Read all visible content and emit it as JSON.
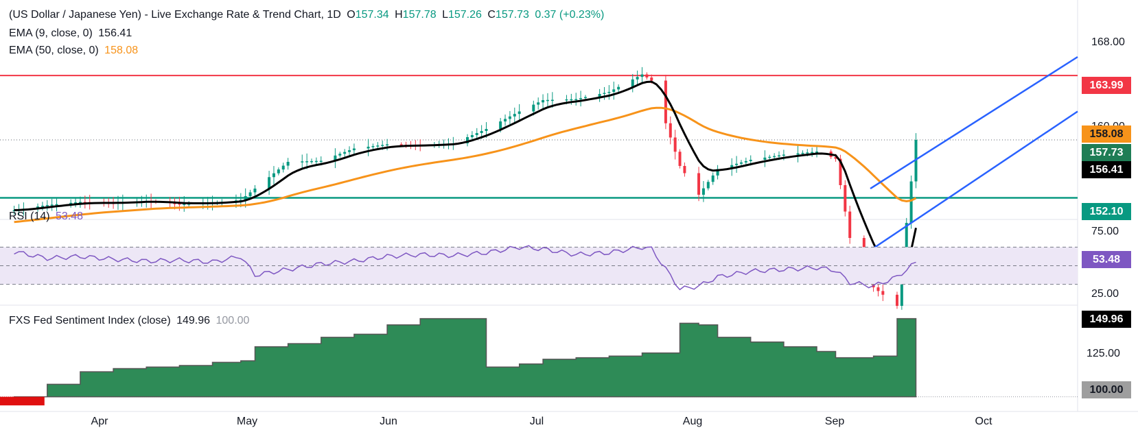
{
  "legend": {
    "title": "(US Dollar / Japanese Yen) - Live Exchange Rate & Trend Chart, 1D",
    "o_label": "O",
    "o_value": "157.34",
    "h_label": "H",
    "h_value": "157.78",
    "l_label": "L",
    "l_value": "157.26",
    "c_label": "C",
    "c_value": "157.73",
    "change": "0.37 (+0.23%)",
    "ema9_label": "EMA (9, close, 0)",
    "ema9_value": "156.41",
    "ema50_label": "EMA (50, close, 0)",
    "ema50_value": "158.08",
    "rsi_label": "RSI (14)",
    "rsi_value": "53.48",
    "fxs_label": "FXS Fed Sentiment Index (close)",
    "fxs_value": "149.96",
    "fxs_value2": "100.00"
  },
  "price_axis": {
    "labels": [
      "168.00",
      "160.00"
    ]
  },
  "rsi_axis": {
    "labels": [
      "75.00",
      "25.00"
    ]
  },
  "fxs_axis": {
    "labels": [
      "125.00"
    ]
  },
  "price_tags": {
    "resistance": "163.99",
    "ema50": "158.08",
    "close": "157.73",
    "ema9": "156.41",
    "support": "152.10",
    "rsi": "53.48",
    "fxs": "149.96",
    "fxs_base": "100.00"
  },
  "months": [
    "Apr",
    "May",
    "Jun",
    "Jul",
    "Aug",
    "Sep",
    "Oct"
  ],
  "colors": {
    "up": "#089981",
    "down": "#f23645",
    "ema9": "#000000",
    "ema50": "#f7931a",
    "resistance": "#f23645",
    "support": "#089981",
    "channel": "#2962ff",
    "rsi": "#7e57c2",
    "rsi_band": "#ede7f6",
    "fxs_fill": "#2e8b57",
    "fxs_neg": "#e01010"
  },
  "chart_data": [
    {
      "type": "line",
      "title": "(US Dollar / Japanese Yen) - Live Exchange Rate & Trend Chart, 1D",
      "x": [
        "2024-03-13",
        "2024-03-20",
        "2024-03-27",
        "2024-04-03",
        "2024-04-10",
        "2024-04-17",
        "2024-04-24",
        "2024-04-30",
        "2024-05-03",
        "2024-05-10",
        "2024-05-17",
        "2024-05-24",
        "2024-05-31",
        "2024-06-07",
        "2024-06-14",
        "2024-06-21",
        "2024-06-28",
        "2024-07-03",
        "2024-07-10",
        "2024-07-17",
        "2024-07-24",
        "2024-07-26",
        "2024-08-01",
        "2024-08-05",
        "2024-08-09",
        "2024-08-16",
        "2024-08-23",
        "2024-08-30",
        "2024-09-03",
        "2024-09-06",
        "2024-09-11",
        "2024-09-16",
        "2024-09-20"
      ],
      "close": [
        150.9,
        151.4,
        151.7,
        151.6,
        151.8,
        151.5,
        151.6,
        151.9,
        153.0,
        155.6,
        155.7,
        156.9,
        157.3,
        157.2,
        157.4,
        158.8,
        160.5,
        161.6,
        161.7,
        162.4,
        164.1,
        163.5,
        155.2,
        152.4,
        154.9,
        155.8,
        156.3,
        156.6,
        155.9,
        148.2,
        143.4,
        141.6,
        157.73
      ],
      "series": [
        {
          "name": "EMA (9, close, 0)",
          "last": 156.41
        },
        {
          "name": "EMA (50, close, 0)",
          "last": 158.08
        }
      ],
      "horizontal_levels": [
        163.99,
        152.1
      ],
      "ohlc_last": {
        "open": 157.34,
        "high": 157.78,
        "low": 157.26,
        "close": 157.73,
        "change": 0.37,
        "change_pct": 0.23
      },
      "ylim": [
        150,
        170
      ],
      "x_tick_labels": [
        "Apr",
        "May",
        "Jun",
        "Jul",
        "Aug",
        "Sep",
        "Oct"
      ],
      "grid": false
    },
    {
      "type": "line",
      "series": [
        {
          "name": "RSI (14)",
          "last": 53.48
        }
      ],
      "x": [
        "2024-03-13",
        "2024-03-20",
        "2024-03-27",
        "2024-04-03",
        "2024-04-10",
        "2024-04-17",
        "2024-04-24",
        "2024-04-30",
        "2024-05-03",
        "2024-05-10",
        "2024-05-17",
        "2024-05-24",
        "2024-05-31",
        "2024-06-07",
        "2024-06-14",
        "2024-06-21",
        "2024-06-28",
        "2024-07-03",
        "2024-07-10",
        "2024-07-17",
        "2024-07-24",
        "2024-07-26",
        "2024-08-01",
        "2024-08-05",
        "2024-08-09",
        "2024-08-16",
        "2024-08-23",
        "2024-08-30",
        "2024-09-03",
        "2024-09-06",
        "2024-09-11",
        "2024-09-16",
        "2024-09-20"
      ],
      "values": [
        65,
        58,
        60,
        57,
        55,
        56,
        54,
        60,
        40,
        46,
        52,
        55,
        60,
        62,
        61,
        64,
        70,
        68,
        62,
        64,
        70,
        68,
        25,
        28,
        38,
        44,
        46,
        48,
        45,
        32,
        28,
        38,
        53.48
      ],
      "levels": [
        75,
        50,
        25
      ],
      "ylim": [
        25,
        75
      ]
    },
    {
      "type": "area",
      "series": [
        {
          "name": "FXS Fed Sentiment Index (close)",
          "last": 149.96
        }
      ],
      "x": [
        "2024-03-13",
        "2024-03-20",
        "2024-03-27",
        "2024-04-03",
        "2024-04-10",
        "2024-04-17",
        "2024-04-24",
        "2024-04-30",
        "2024-05-03",
        "2024-05-10",
        "2024-05-17",
        "2024-05-24",
        "2024-05-31",
        "2024-06-07",
        "2024-06-14",
        "2024-06-21",
        "2024-06-28",
        "2024-07-03",
        "2024-07-10",
        "2024-07-17",
        "2024-07-24",
        "2024-07-26",
        "2024-08-01",
        "2024-08-05",
        "2024-08-09",
        "2024-08-16",
        "2024-08-23",
        "2024-08-30",
        "2024-09-03",
        "2024-09-06",
        "2024-09-11",
        "2024-09-16",
        "2024-09-20"
      ],
      "values": [
        98,
        108,
        116,
        118,
        119,
        120,
        122,
        123,
        132,
        134,
        138,
        140,
        146,
        150,
        150,
        119,
        121,
        124,
        125,
        126,
        128,
        128,
        147,
        146,
        138,
        135,
        132,
        129,
        125,
        125,
        126,
        150,
        149.96
      ],
      "baseline": 100,
      "ylim": [
        95,
        152
      ]
    }
  ]
}
